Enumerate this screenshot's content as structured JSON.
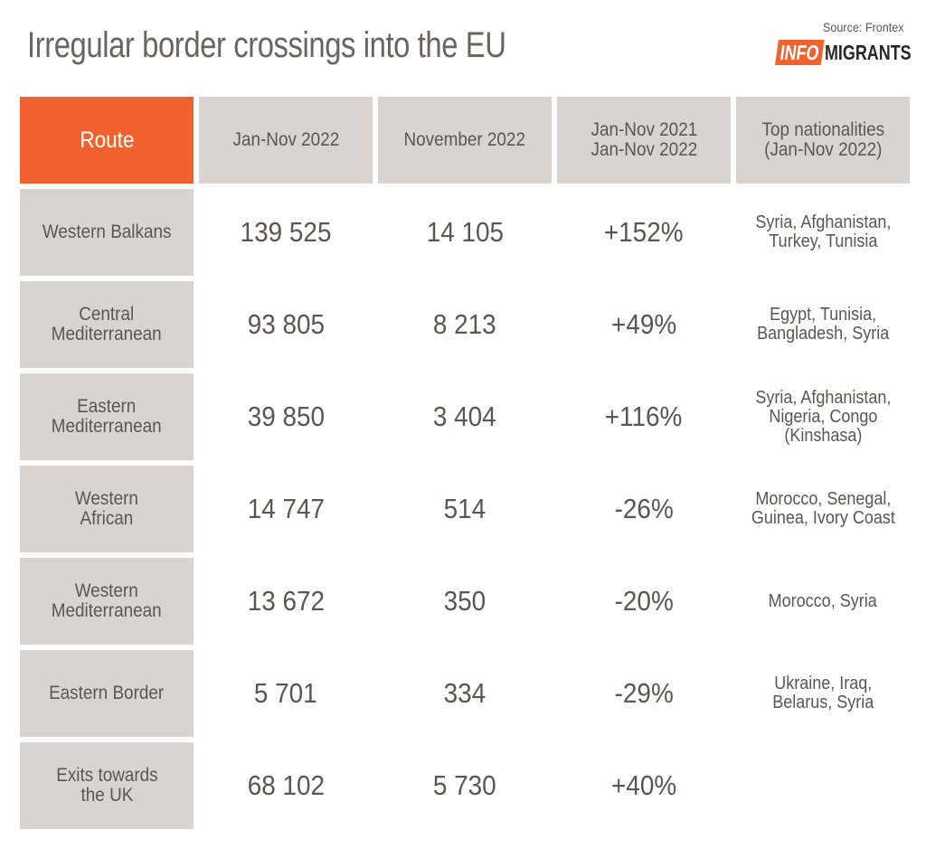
{
  "title": "Irregular border crossings into the EU",
  "source": "Source: Frontex",
  "logo": {
    "part1": "INFO",
    "part2": "MIGRANTS",
    "accent_color": "#f2622e"
  },
  "chart_data": {
    "type": "table",
    "columns": [
      "Route",
      "Jan-Nov 2022",
      "November 2022",
      "Jan-Nov 2021\nJan-Nov 2022",
      "Top nationalities\n(Jan-Nov 2022)"
    ],
    "rows": [
      {
        "route": "Western Balkans",
        "jan_nov_2022": "139 525",
        "november_2022": "14 105",
        "change": "+152%",
        "nationalities": "Syria, Afghanistan,\nTurkey, Tunisia"
      },
      {
        "route": "Central\nMediterranean",
        "jan_nov_2022": "93 805",
        "november_2022": "8 213",
        "change": "+49%",
        "nationalities": "Egypt, Tunisia,\nBangladesh, Syria"
      },
      {
        "route": "Eastern\nMediterranean",
        "jan_nov_2022": "39 850",
        "november_2022": "3 404",
        "change": "+116%",
        "nationalities": "Syria, Afghanistan,\nNigeria, Congo\n(Kinshasa)"
      },
      {
        "route": "Western\nAfrican",
        "jan_nov_2022": "14 747",
        "november_2022": "514",
        "change": "-26%",
        "nationalities": "Morocco, Senegal,\nGuinea, Ivory Coast"
      },
      {
        "route": "Western\nMediterranean",
        "jan_nov_2022": "13 672",
        "november_2022": "350",
        "change": "-20%",
        "nationalities": "Morocco, Syria"
      },
      {
        "route": "Eastern Border",
        "jan_nov_2022": "5 701",
        "november_2022": "334",
        "change": "-29%",
        "nationalities": "Ukraine, Iraq,\nBelarus, Syria"
      },
      {
        "route": "Exits towards\nthe UK",
        "jan_nov_2022": "68 102",
        "november_2022": "5 730",
        "change": "+40%",
        "nationalities": ""
      }
    ],
    "colors": {
      "header_accent": "#f2622e",
      "cell_fill": "#d9d4d0",
      "text": "#5d5650"
    }
  }
}
